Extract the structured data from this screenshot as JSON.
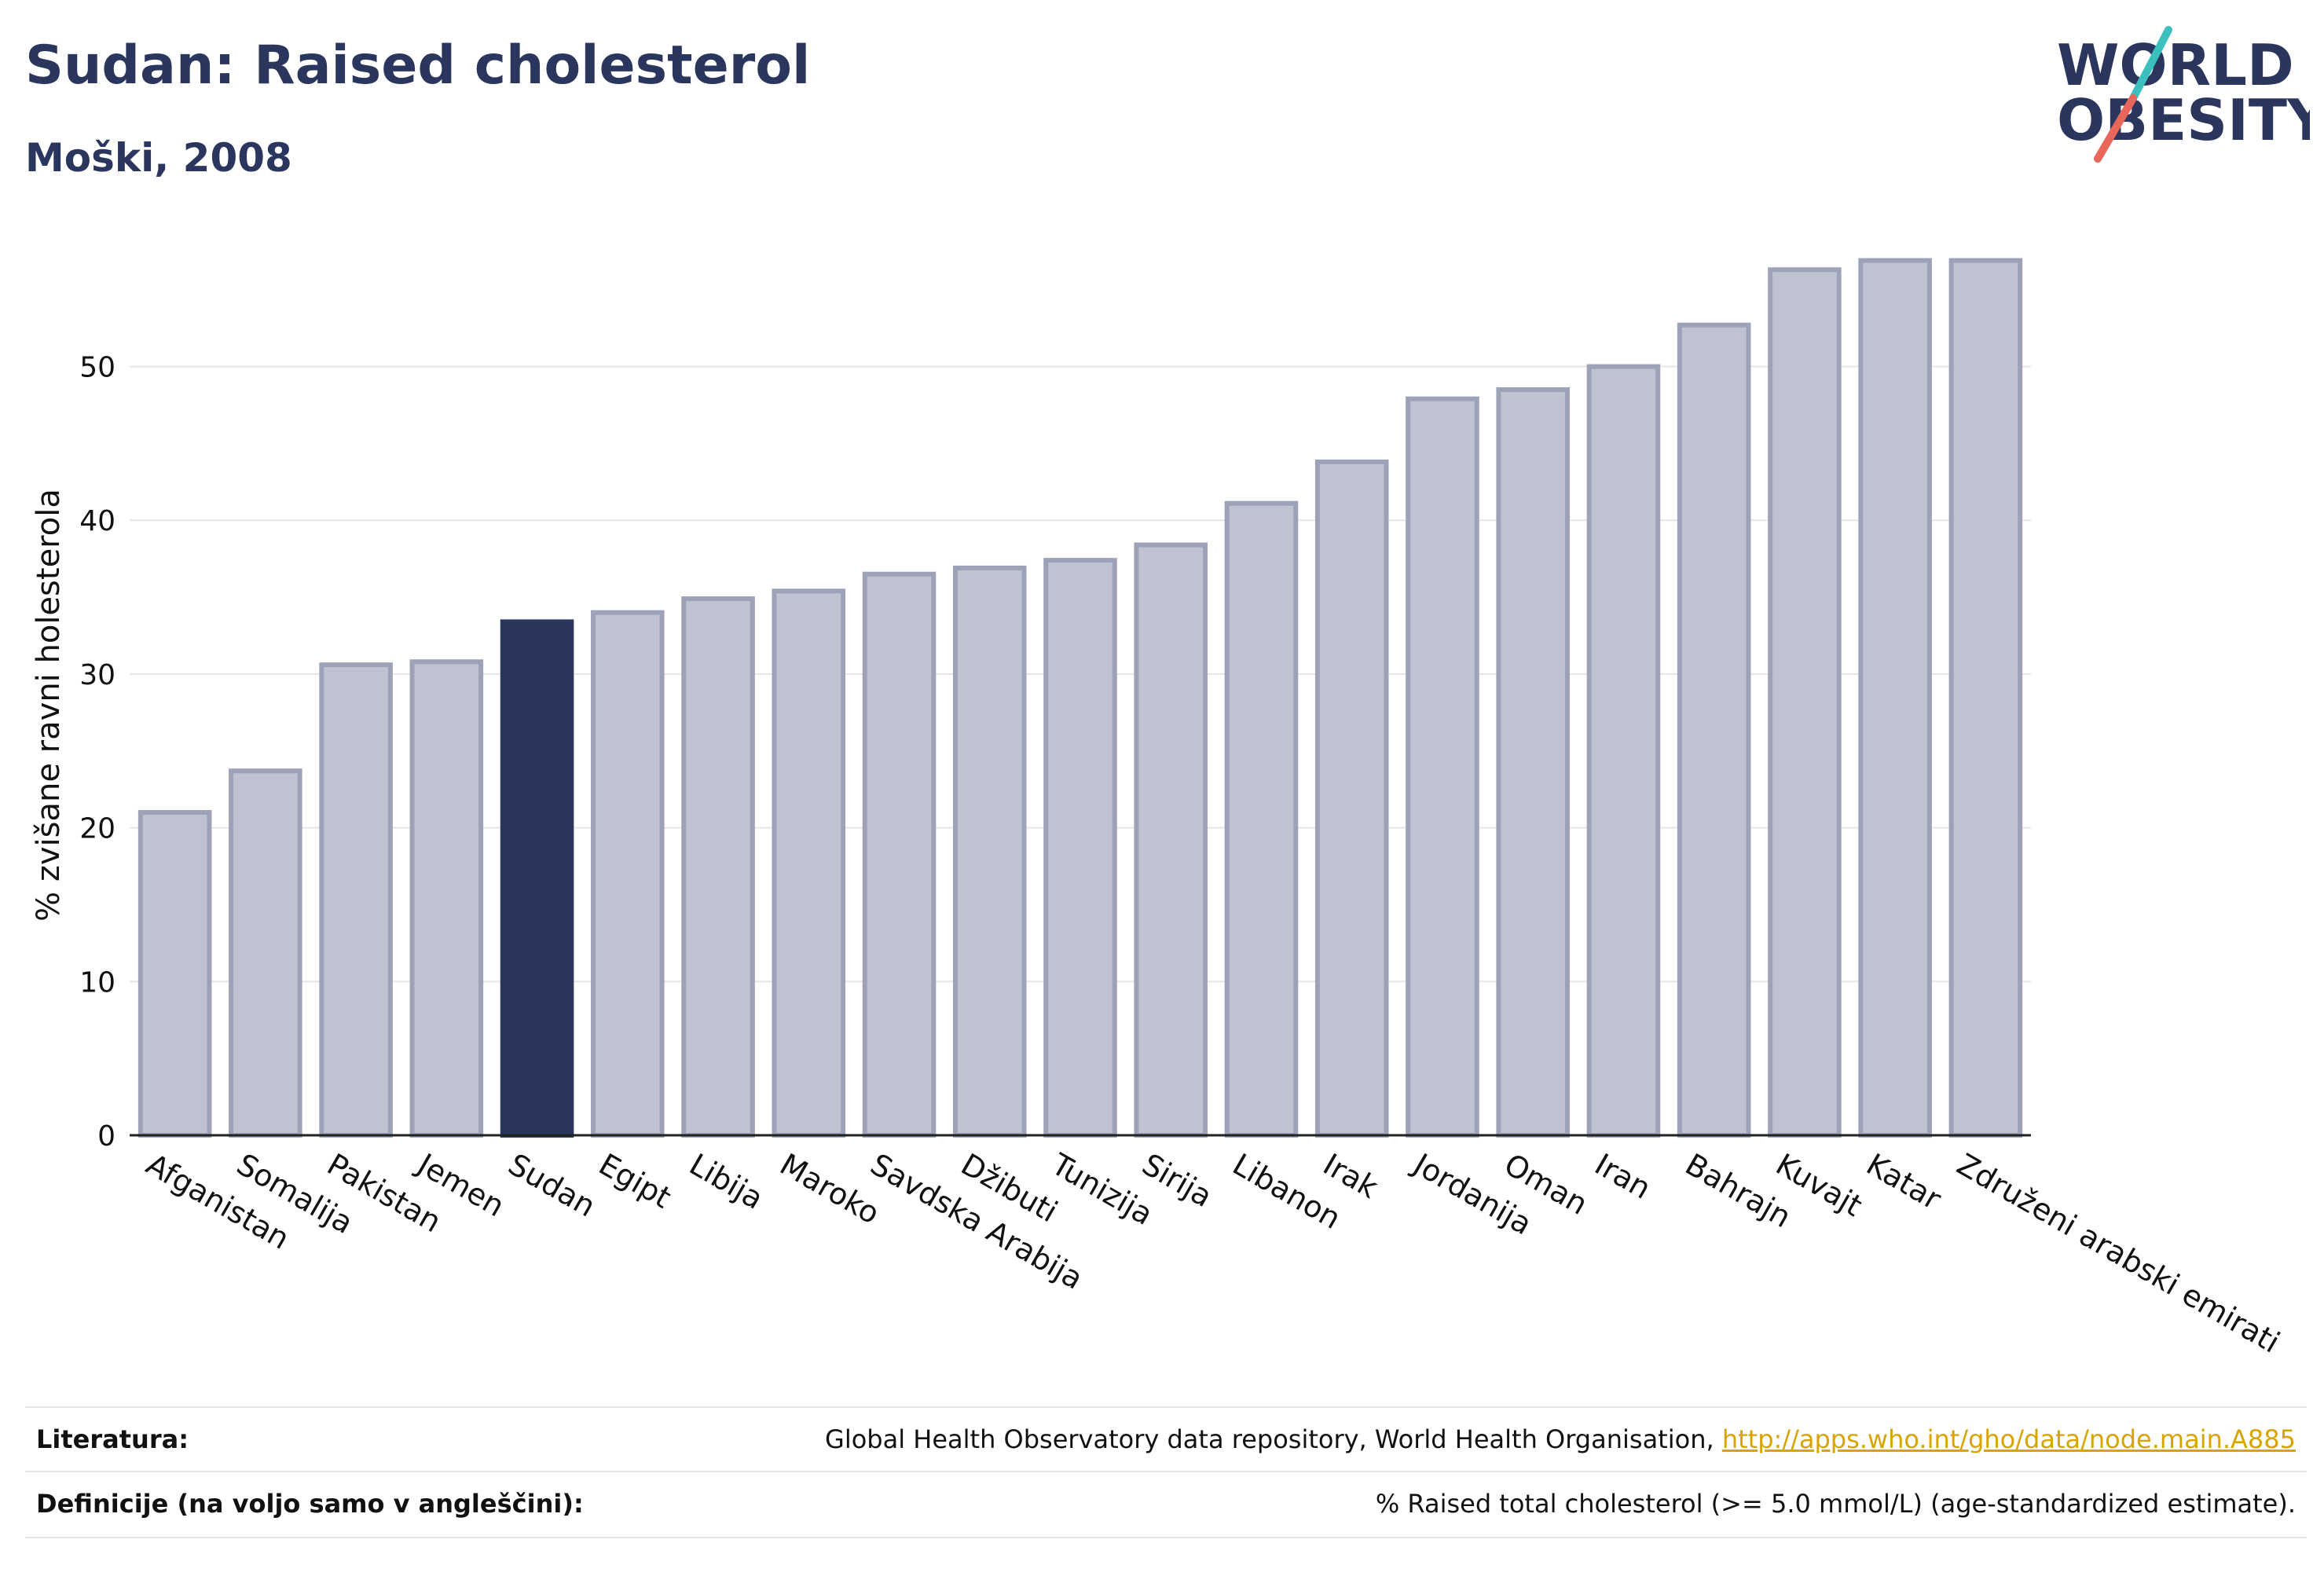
{
  "header": {
    "title": "Sudan: Raised cholesterol",
    "subtitle": "Moški, 2008"
  },
  "logo": {
    "line1": "WORLD",
    "line2": "OBESITY",
    "text_color": "#2b365e",
    "slash_color_top": "#3bbfbf",
    "slash_color_bottom": "#e8665a"
  },
  "colors": {
    "bar_default": "#bfc2d0",
    "bar_default_stroke": "#9da2b8",
    "bar_highlight": "#2b365e",
    "title": "#2b365e",
    "link": "#d9a400"
  },
  "chart_data": {
    "type": "bar",
    "title": "Sudan: Raised cholesterol",
    "subtitle": "Moški, 2008",
    "xlabel": "",
    "ylabel": "% zvišane ravni holesterola",
    "ylim": [
      0,
      58
    ],
    "yticks": [
      0,
      10,
      20,
      30,
      40,
      50
    ],
    "grid": true,
    "highlight": "Sudan",
    "categories": [
      "Afganistan",
      "Somalija",
      "Pakistan",
      "Jemen",
      "Sudan",
      "Egipt",
      "Libija",
      "Maroko",
      "Savdska Arabija",
      "Džibuti",
      "Tunizija",
      "Sirija",
      "Libanon",
      "Irak",
      "Jordanija",
      "Oman",
      "Iran",
      "Bahrajn",
      "Kuvajt",
      "Katar",
      "Združeni arabski emirati"
    ],
    "values": [
      21.0,
      23.7,
      30.6,
      30.8,
      33.4,
      34.0,
      34.9,
      35.4,
      36.5,
      36.9,
      37.4,
      38.4,
      41.1,
      43.8,
      47.9,
      48.5,
      50.0,
      52.7,
      56.3,
      56.9,
      56.9
    ]
  },
  "footer": {
    "literature_label": "Literatura:",
    "literature_text": "Global Health Observatory data repository, World Health Organisation, ",
    "literature_link": "http://apps.who.int/gho/data/node.main.A885",
    "definitions_label": "Definicije (na voljo samo v angleščini):",
    "definitions_text": "% Raised total cholesterol (>= 5.0 mmol/L) (age-standardized estimate)."
  }
}
